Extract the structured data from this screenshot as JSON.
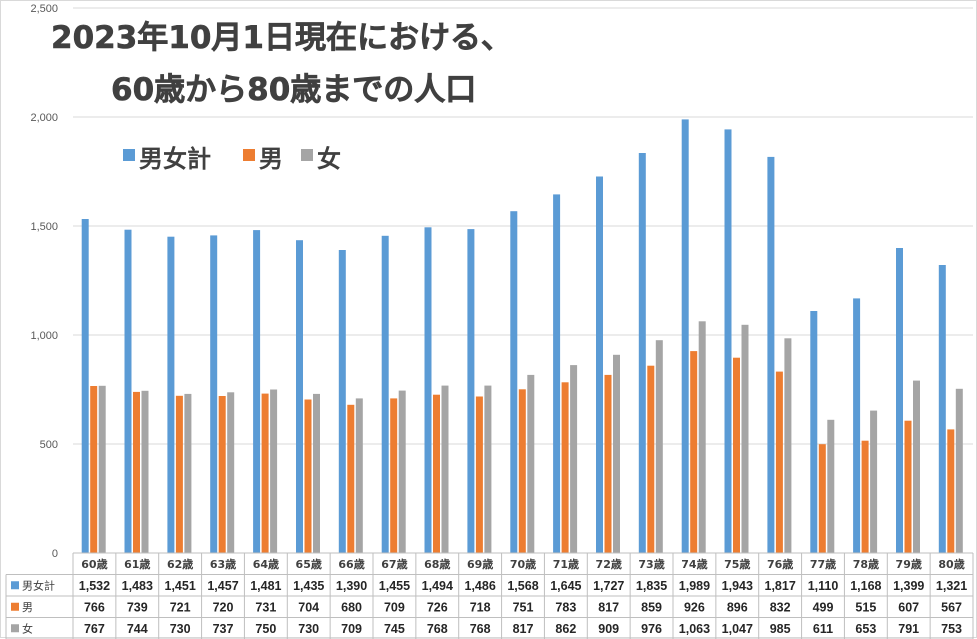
{
  "chart_data": {
    "type": "bar",
    "title_lines": [
      "2023年10月1日現在における、",
      "60歳から80歳までの人口"
    ],
    "categories": [
      "60歳",
      "61歳",
      "62歳",
      "63歳",
      "64歳",
      "65歳",
      "66歳",
      "67歳",
      "68歳",
      "69歳",
      "70歳",
      "71歳",
      "72歳",
      "73歳",
      "74歳",
      "75歳",
      "76歳",
      "77歳",
      "78歳",
      "79歳",
      "80歳"
    ],
    "ylim": [
      0,
      2500
    ],
    "yticks": [
      "0",
      "500",
      "1,000",
      "1,500",
      "2,000",
      "2,500"
    ],
    "ytick_values": [
      0,
      500,
      1000,
      1500,
      2000,
      2500
    ],
    "grid": true,
    "legend_position": "top-left",
    "data_table": true,
    "series": [
      {
        "name": "男女計",
        "color": "#5b9bd5",
        "values": [
          1532,
          1483,
          1451,
          1457,
          1481,
          1435,
          1390,
          1455,
          1494,
          1486,
          1568,
          1645,
          1727,
          1835,
          1989,
          1943,
          1817,
          1110,
          1168,
          1399,
          1321
        ],
        "labels": [
          "1,532",
          "1,483",
          "1,451",
          "1,457",
          "1,481",
          "1,435",
          "1,390",
          "1,455",
          "1,494",
          "1,486",
          "1,568",
          "1,645",
          "1,727",
          "1,835",
          "1,989",
          "1,943",
          "1,817",
          "1,110",
          "1,168",
          "1,399",
          "1,321"
        ]
      },
      {
        "name": "男",
        "color": "#ed7d31",
        "values": [
          766,
          739,
          721,
          720,
          731,
          704,
          680,
          709,
          726,
          718,
          751,
          783,
          817,
          859,
          926,
          896,
          832,
          499,
          515,
          607,
          567
        ],
        "labels": [
          "766",
          "739",
          "721",
          "720",
          "731",
          "704",
          "680",
          "709",
          "726",
          "718",
          "751",
          "783",
          "817",
          "859",
          "926",
          "896",
          "832",
          "499",
          "515",
          "607",
          "567"
        ]
      },
      {
        "name": "女",
        "color": "#a5a5a5",
        "values": [
          767,
          744,
          730,
          737,
          750,
          730,
          709,
          745,
          768,
          768,
          817,
          862,
          909,
          976,
          1063,
          1047,
          985,
          611,
          653,
          791,
          753
        ],
        "labels": [
          "767",
          "744",
          "730",
          "737",
          "750",
          "730",
          "709",
          "745",
          "768",
          "768",
          "817",
          "862",
          "909",
          "976",
          "1,063",
          "1,047",
          "985",
          "611",
          "653",
          "791",
          "753"
        ]
      }
    ]
  }
}
